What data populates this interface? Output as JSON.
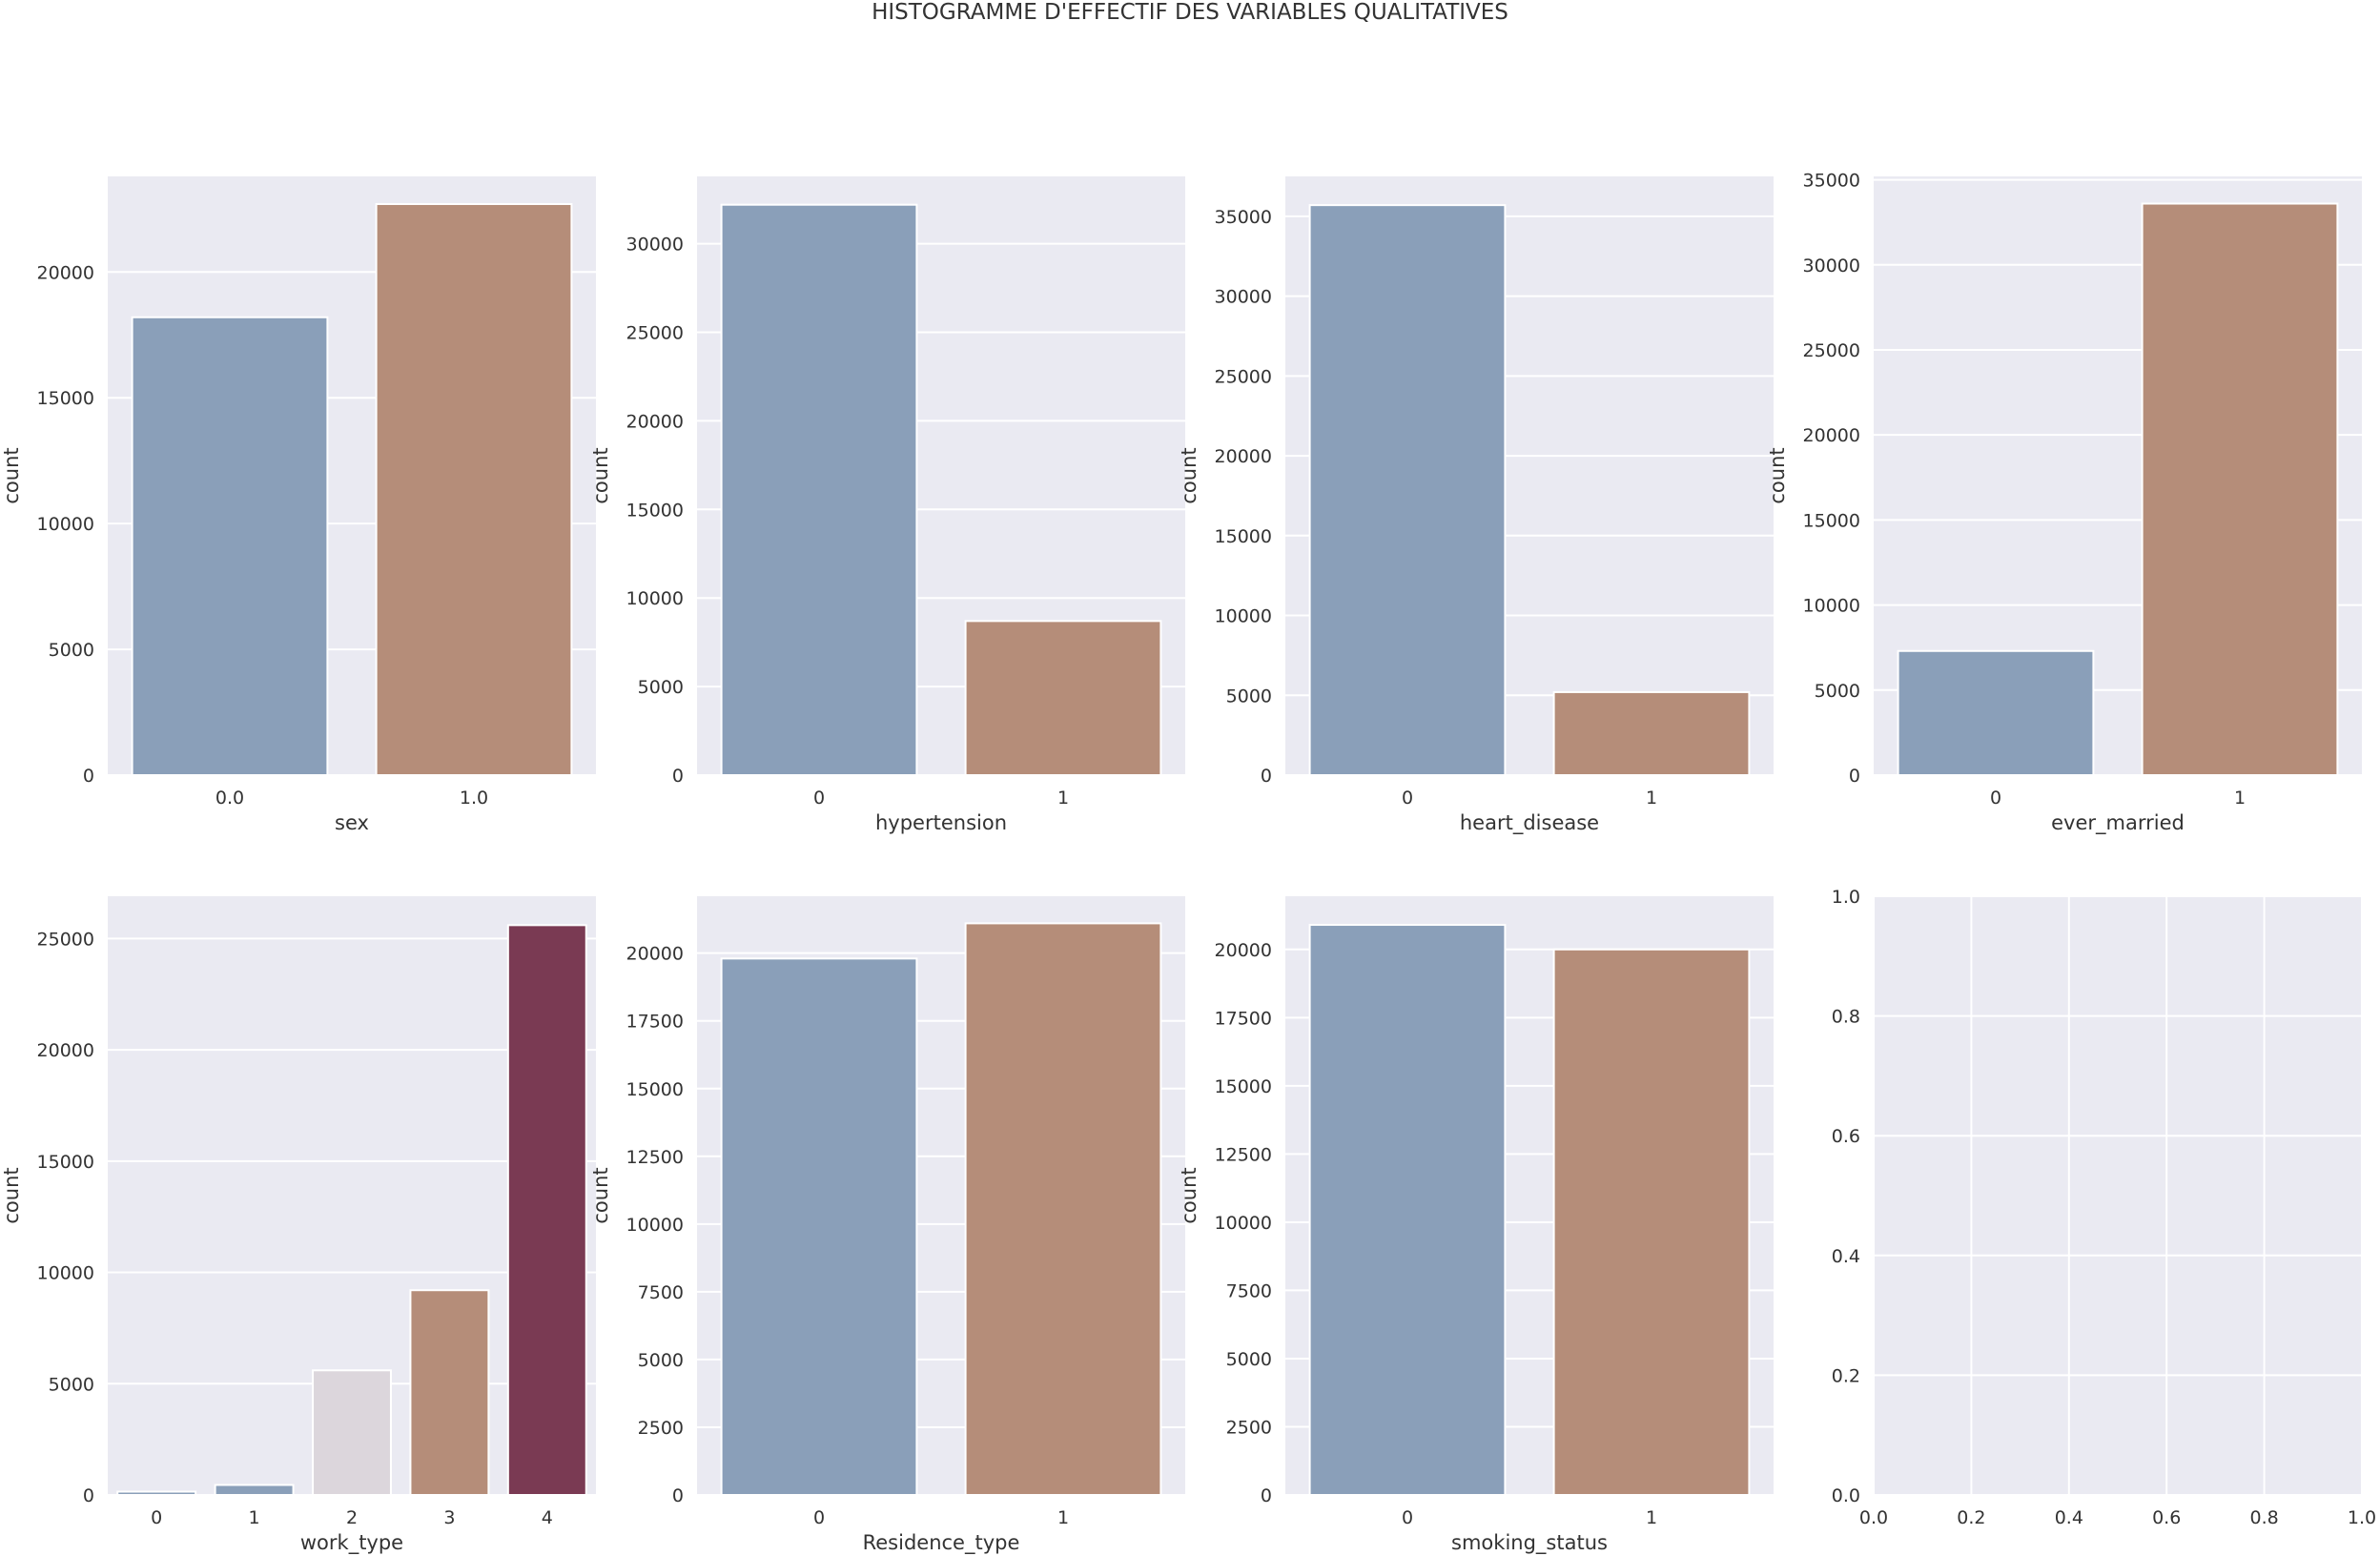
{
  "figure": {
    "title": "HISTOGRAMME D'EFFECTIF DES VARIABLES QUALITATIVES"
  },
  "colors": {
    "axes_bg": "#EAEAF2",
    "grid": "#FFFFFF",
    "text": "#333333",
    "palette": [
      "#8A9FB9",
      "#B58D79",
      "#DCD6DC",
      "#B58D79",
      "#7A3A53"
    ]
  },
  "chart_data": [
    {
      "type": "bar",
      "xlabel": "sex",
      "ylabel": "count",
      "categories": [
        "0.0",
        "1.0"
      ],
      "values": [
        18200,
        22700
      ],
      "ylim": [
        0,
        23800
      ],
      "yticks": [
        0,
        5000,
        10000,
        15000,
        20000
      ],
      "bar_colors": [
        0,
        1
      ]
    },
    {
      "type": "bar",
      "xlabel": "hypertension",
      "ylabel": "count",
      "categories": [
        "0",
        "1"
      ],
      "values": [
        32200,
        8700
      ],
      "ylim": [
        0,
        33800
      ],
      "yticks": [
        0,
        5000,
        10000,
        15000,
        20000,
        25000,
        30000
      ],
      "bar_colors": [
        0,
        1
      ]
    },
    {
      "type": "bar",
      "xlabel": "heart_disease",
      "ylabel": "count",
      "categories": [
        "0",
        "1"
      ],
      "values": [
        35700,
        5200
      ],
      "ylim": [
        0,
        37500
      ],
      "yticks": [
        0,
        5000,
        10000,
        15000,
        20000,
        25000,
        30000,
        35000
      ],
      "bar_colors": [
        0,
        1
      ]
    },
    {
      "type": "bar",
      "xlabel": "ever_married",
      "ylabel": "count",
      "categories": [
        "0",
        "1"
      ],
      "values": [
        7300,
        33600
      ],
      "ylim": [
        0,
        35200
      ],
      "yticks": [
        0,
        5000,
        10000,
        15000,
        20000,
        25000,
        30000,
        35000
      ],
      "bar_colors": [
        0,
        1
      ]
    },
    {
      "type": "bar",
      "xlabel": "work_type",
      "ylabel": "count",
      "categories": [
        "0",
        "1",
        "2",
        "3",
        "4"
      ],
      "values": [
        150,
        450,
        5600,
        9200,
        25600
      ],
      "ylim": [
        0,
        26900
      ],
      "yticks": [
        0,
        5000,
        10000,
        15000,
        20000,
        25000
      ],
      "bar_colors": [
        0,
        0,
        2,
        3,
        4
      ]
    },
    {
      "type": "bar",
      "xlabel": "Residence_type",
      "ylabel": "count",
      "categories": [
        "0",
        "1"
      ],
      "values": [
        19800,
        21100
      ],
      "ylim": [
        0,
        22100
      ],
      "yticks": [
        0,
        2500,
        5000,
        7500,
        10000,
        12500,
        15000,
        17500,
        20000
      ],
      "bar_colors": [
        0,
        1
      ]
    },
    {
      "type": "bar",
      "xlabel": "smoking_status",
      "ylabel": "count",
      "categories": [
        "0",
        "1"
      ],
      "values": [
        20900,
        20000
      ],
      "ylim": [
        0,
        21950
      ],
      "yticks": [
        0,
        2500,
        5000,
        7500,
        10000,
        12500,
        15000,
        17500,
        20000
      ],
      "bar_colors": [
        0,
        1
      ]
    },
    {
      "type": "empty",
      "xlabel": "",
      "ylabel": "",
      "xlim": [
        0,
        1
      ],
      "ylim": [
        0,
        1
      ],
      "xticks": [
        "0.0",
        "0.2",
        "0.4",
        "0.6",
        "0.8",
        "1.0"
      ],
      "yticks": [
        "0.0",
        "0.2",
        "0.4",
        "0.6",
        "0.8",
        "1.0"
      ]
    }
  ]
}
